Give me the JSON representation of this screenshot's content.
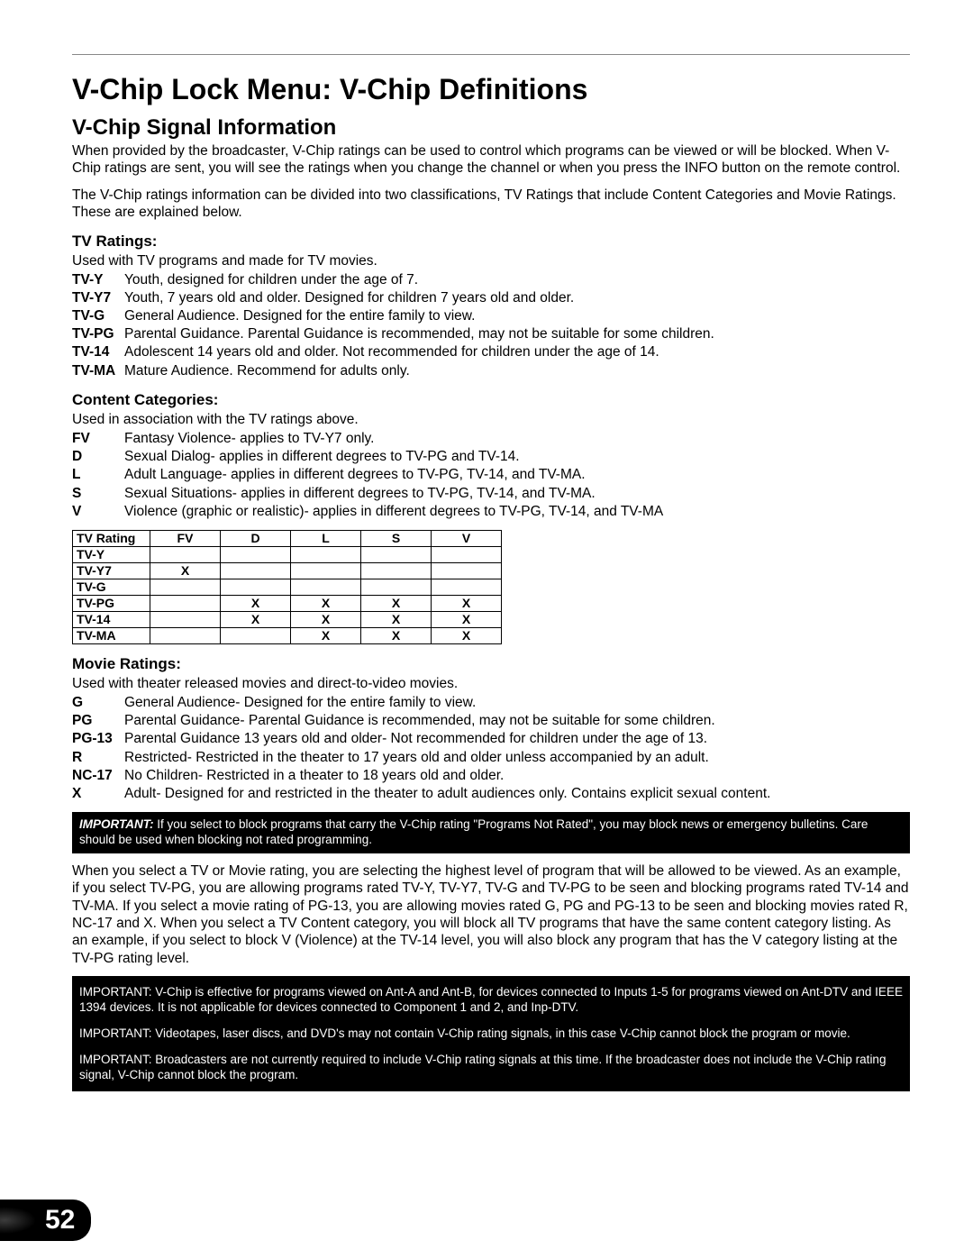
{
  "page_number": "52",
  "title": "V-Chip Lock Menu: V-Chip Definitions",
  "section1": {
    "heading": "V-Chip Signal Information",
    "para1": "When provided by the broadcaster, V-Chip ratings can be used to control which programs can be viewed or will be blocked.  When V-Chip ratings are sent, you will see the ratings when you change the channel or when you press the INFO button on the remote control.",
    "para2": "The V-Chip ratings information can be divided into two classifications, TV Ratings that include Content Categories and Movie Ratings.  These are explained below."
  },
  "tv_ratings": {
    "heading": "TV Ratings:",
    "intro": "Used with TV programs and made for TV movies.",
    "items": [
      {
        "term": "TV-Y",
        "desc": "Youth, designed for children under the age of 7."
      },
      {
        "term": "TV-Y7",
        "desc": "Youth, 7 years old and older.  Designed for children 7 years old and older."
      },
      {
        "term": "TV-G",
        "desc": "General Audience.  Designed for the entire family to view."
      },
      {
        "term": "TV-PG",
        "desc": "Parental Guidance.  Parental Guidance is recommended, may not be suitable for some children."
      },
      {
        "term": "TV-14",
        "desc": "Adolescent 14 years old and older.  Not recommended for children under the age of 14."
      },
      {
        "term": "TV-MA",
        "desc": "Mature Audience.  Recommend for adults only."
      }
    ]
  },
  "content_categories": {
    "heading": "Content Categories:",
    "intro": "Used in association with the TV ratings above.",
    "items": [
      {
        "term": "FV",
        "desc": "Fantasy Violence- applies to TV-Y7 only."
      },
      {
        "term": "D",
        "desc": "Sexual Dialog- applies in different degrees to TV-PG and TV-14."
      },
      {
        "term": "L",
        "desc": "Adult Language- applies in different degrees to TV-PG, TV-14, and TV-MA."
      },
      {
        "term": "S",
        "desc": "Sexual Situations- applies in different degrees to TV-PG, TV-14, and TV-MA."
      },
      {
        "term": "V",
        "desc": "Violence (graphic or realistic)- applies in different degrees to TV-PG, TV-14, and TV-MA"
      }
    ]
  },
  "ratings_table": {
    "columns": [
      "TV Rating",
      "FV",
      "D",
      "L",
      "S",
      "V"
    ],
    "rows": [
      [
        "TV-Y",
        "",
        "",
        "",
        "",
        ""
      ],
      [
        "TV-Y7",
        "X",
        "",
        "",
        "",
        ""
      ],
      [
        "TV-G",
        "",
        "",
        "",
        "",
        ""
      ],
      [
        "TV-PG",
        "",
        "X",
        "X",
        "X",
        "X"
      ],
      [
        "TV-14",
        "",
        "X",
        "X",
        "X",
        "X"
      ],
      [
        "TV-MA",
        "",
        "",
        "X",
        "X",
        "X"
      ]
    ]
  },
  "movie_ratings": {
    "heading": "Movie Ratings:",
    "intro": "Used with theater released movies and direct-to-video movies.",
    "items": [
      {
        "term": "G",
        "desc": "General Audience- Designed for the entire family to view."
      },
      {
        "term": "PG",
        "desc": "Parental Guidance- Parental Guidance is recommended, may not be suitable for some children."
      },
      {
        "term": "PG-13",
        "desc": "Parental Guidance 13 years old and older- Not recommended for children under the age of 13."
      },
      {
        "term": "R",
        "desc": "Restricted- Restricted in the theater to 17 years old and older unless accompanied by an adult."
      },
      {
        "term": "NC-17",
        "desc": "No Children- Restricted in a theater to 18 years old and older."
      },
      {
        "term": "X",
        "desc": "Adult- Designed for and restricted in the theater to adult audiences only. Contains explicit sexual content."
      }
    ]
  },
  "important1": {
    "label": "IMPORTANT:",
    "text": " If you select to block programs that carry the V-Chip rating \"Programs Not Rated\", you may block news or emergency bulletins. Care should be used when blocking not rated programming."
  },
  "para_explain": "When you select a TV or Movie rating, you are selecting the highest level of program that will be allowed to be viewed. As an example, if you select TV-PG, you are allowing programs rated TV-Y, TV-Y7, TV-G and TV-PG to be seen and blocking programs rated TV-14 and TV-MA.  If you select a movie rating of PG-13, you are allowing movies rated G, PG and PG-13 to be seen and blocking movies rated R, NC-17 and X.  When you select a TV Content category, you will block all TV programs that have the same content category listing.  As an example, if you select to block V (Violence) at the TV-14 level, you will also block any program that has the V category listing at the TV-PG rating level.",
  "important_group": [
    {
      "label": "IMPORTANT:",
      "text": " V-Chip is effective for programs viewed on Ant-A and Ant-B, for devices connected to Inputs 1-5 for programs viewed on Ant-DTV and IEEE 1394 devices.  It is not applicable for devices connected to Component 1 and 2, and Inp-DTV."
    },
    {
      "label": "IMPORTANT:",
      "text": " Videotapes, laser discs, and DVD's may not contain V-Chip rating signals, in this case V-Chip cannot block the program or movie."
    },
    {
      "label": "IMPORTANT:",
      "text": " Broadcasters are not currently required to include V-Chip rating signals at this time. If the broadcaster does not include the V-Chip rating signal, V-Chip cannot block the program."
    }
  ]
}
